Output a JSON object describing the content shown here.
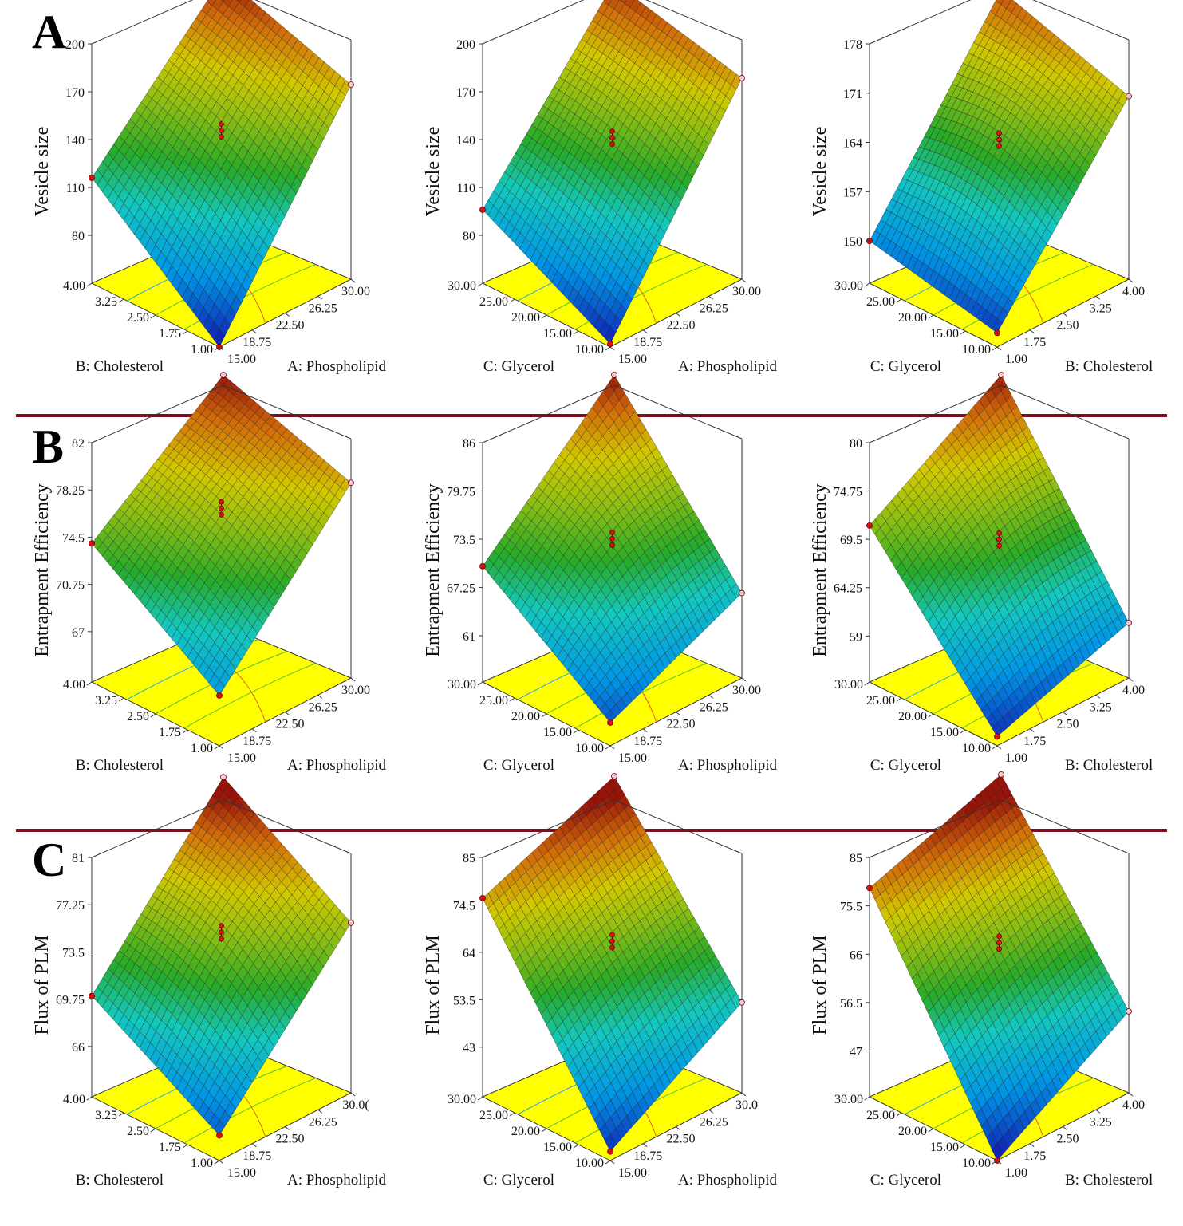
{
  "figure": {
    "panel_labels": [
      "A",
      "B",
      "C"
    ],
    "colors": {
      "divider": "#7b0f1f",
      "floor": "#ffff00",
      "point_red": "#dd1111",
      "point_pink": "#f4c6cf"
    }
  },
  "chart_data": [
    {
      "type": "surface3d",
      "row": "A",
      "zlabel": "Vesicle size",
      "xlabel": "A: Phospholipid",
      "ylabel": "B: Cholesterol",
      "x_ticks": [
        "15.00",
        "18.75",
        "22.50",
        "26.25",
        "30.00"
      ],
      "y_ticks": [
        "1.00",
        "1.75",
        "2.50",
        "3.25",
        "4.00"
      ],
      "z_ticks": [
        "80",
        "110",
        "140",
        "170",
        "200"
      ],
      "zlim": [
        50,
        200
      ],
      "corners": {
        "front": 50,
        "left": 116,
        "right": 172,
        "back": 200
      }
    },
    {
      "type": "surface3d",
      "row": "A",
      "zlabel": "Vesicle size",
      "xlabel": "A: Phospholipid",
      "ylabel": "C: Glycerol",
      "x_ticks": [
        "15.00",
        "18.75",
        "22.50",
        "26.25",
        "30.00"
      ],
      "y_ticks": [
        "10.00",
        "15.00",
        "20.00",
        "25.00",
        "30.00"
      ],
      "z_ticks": [
        "80",
        "110",
        "140",
        "170",
        "200"
      ],
      "zlim": [
        50,
        200
      ],
      "corners": {
        "front": 52,
        "left": 96,
        "right": 176,
        "back": 196
      }
    },
    {
      "type": "surface3d",
      "row": "A",
      "zlabel": "Vesicle size",
      "xlabel": "B: Cholesterol",
      "ylabel": "C: Glycerol",
      "x_ticks": [
        "1.00",
        "1.75",
        "2.50",
        "3.25",
        "4.00"
      ],
      "y_ticks": [
        "10.00",
        "15.00",
        "20.00",
        "25.00",
        "30.00"
      ],
      "z_ticks": [
        "150",
        "157",
        "164",
        "171",
        "178"
      ],
      "zlim": [
        144,
        178
      ],
      "corners": {
        "front": 146,
        "left": 150,
        "right": 170,
        "back": 176
      }
    },
    {
      "type": "surface3d",
      "row": "B",
      "zlabel": "Entrapment Efficiency",
      "xlabel": "A: Phospholipid",
      "ylabel": "B: Cholesterol",
      "x_ticks": [
        "15.00",
        "18.75",
        "22.50",
        "26.25",
        "30.00"
      ],
      "y_ticks": [
        "1.00",
        "1.75",
        "2.50",
        "3.25",
        "4.00"
      ],
      "z_ticks": [
        "67",
        "70.75",
        "74.5",
        "78.25",
        "82"
      ],
      "zlim": [
        63,
        82
      ],
      "corners": {
        "front": 67,
        "left": 74,
        "right": 78.5,
        "back": 82
      }
    },
    {
      "type": "surface3d",
      "row": "B",
      "zlabel": "Entrapment Efficiency",
      "xlabel": "A: Phospholipid",
      "ylabel": "C: Glycerol",
      "x_ticks": [
        "15.00",
        "18.75",
        "22.50",
        "26.25",
        "30.00"
      ],
      "y_ticks": [
        "10.00",
        "15.00",
        "20.00",
        "25.00",
        "30.00"
      ],
      "z_ticks": [
        "61",
        "67.25",
        "73.5",
        "79.75",
        "86"
      ],
      "zlim": [
        55,
        86
      ],
      "corners": {
        "front": 58,
        "left": 70,
        "right": 66,
        "back": 86
      }
    },
    {
      "type": "surface3d",
      "row": "B",
      "zlabel": "Entrapment Efficiency",
      "xlabel": "B: Cholesterol",
      "ylabel": "C: Glycerol",
      "x_ticks": [
        "1.00",
        "1.75",
        "2.50",
        "3.25",
        "4.00"
      ],
      "y_ticks": [
        "10.00",
        "15.00",
        "20.00",
        "25.00",
        "30.00"
      ],
      "z_ticks": [
        "59",
        "64.25",
        "69.5",
        "74.75",
        "80"
      ],
      "zlim": [
        54,
        80
      ],
      "corners": {
        "front": 55,
        "left": 71,
        "right": 60,
        "back": 80
      }
    },
    {
      "type": "surface3d",
      "row": "C",
      "zlabel": "Flux of PLM",
      "xlabel": "A: Phospholipid",
      "ylabel": "B: Cholesterol",
      "x_ticks": [
        "15.00",
        "18.75",
        "22.50",
        "26.25",
        "30.0("
      ],
      "y_ticks": [
        "1.00",
        "1.75",
        "2.50",
        "3.25",
        "4.00"
      ],
      "z_ticks": [
        "66",
        "69.75",
        "73.5",
        "77.25",
        "81"
      ],
      "zlim": [
        62,
        81
      ],
      "corners": {
        "front": 64,
        "left": 70,
        "right": 75.5,
        "back": 82
      }
    },
    {
      "type": "surface3d",
      "row": "C",
      "zlabel": "Flux of PLM",
      "xlabel": "A: Phospholipid",
      "ylabel": "C: Glycerol",
      "x_ticks": [
        "15.00",
        "18.75",
        "22.50",
        "26.25",
        "30.0"
      ],
      "y_ticks": [
        "10.00",
        "15.00",
        "20.00",
        "25.00",
        "30.00"
      ],
      "z_ticks": [
        "43",
        "53.5",
        "64",
        "74.5",
        "85"
      ],
      "zlim": [
        32,
        85
      ],
      "corners": {
        "front": 34,
        "left": 76,
        "right": 52,
        "back": 88
      }
    },
    {
      "type": "surface3d",
      "row": "C",
      "zlabel": "Flux of PLM",
      "xlabel": "B: Cholesterol",
      "ylabel": "C: Glycerol",
      "x_ticks": [
        "1.00",
        "1.75",
        "2.50",
        "3.25",
        "4.00"
      ],
      "y_ticks": [
        "10.00",
        "15.00",
        "20.00",
        "25.00",
        "30.00"
      ],
      "z_ticks": [
        "47",
        "56.5",
        "66",
        "75.5",
        "85"
      ],
      "zlim": [
        38,
        85
      ],
      "corners": {
        "front": 38,
        "left": 79,
        "right": 54,
        "back": 88
      }
    }
  ]
}
